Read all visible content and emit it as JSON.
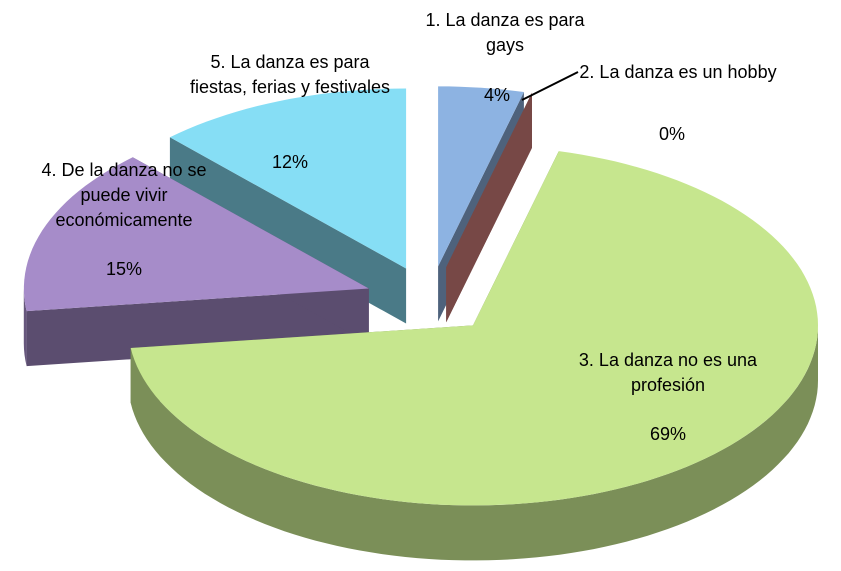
{
  "chart_data": {
    "type": "pie",
    "style": "3d-exploded",
    "categories": [
      "1. La danza es para gays",
      "2. La danza es un hobby",
      "3. La danza no es una profesión",
      "4. De la danza no se puede vivir económicamente",
      "5. La danza es para fiestas, ferias y festivales"
    ],
    "values": [
      4,
      0,
      69,
      15,
      12
    ],
    "value_labels": [
      "4%",
      "0%",
      "69%",
      "15%",
      "12%"
    ],
    "colors": [
      "#8db3e2",
      "#d9827f",
      "#c6e68e",
      "#a68cc9",
      "#86def5"
    ]
  }
}
